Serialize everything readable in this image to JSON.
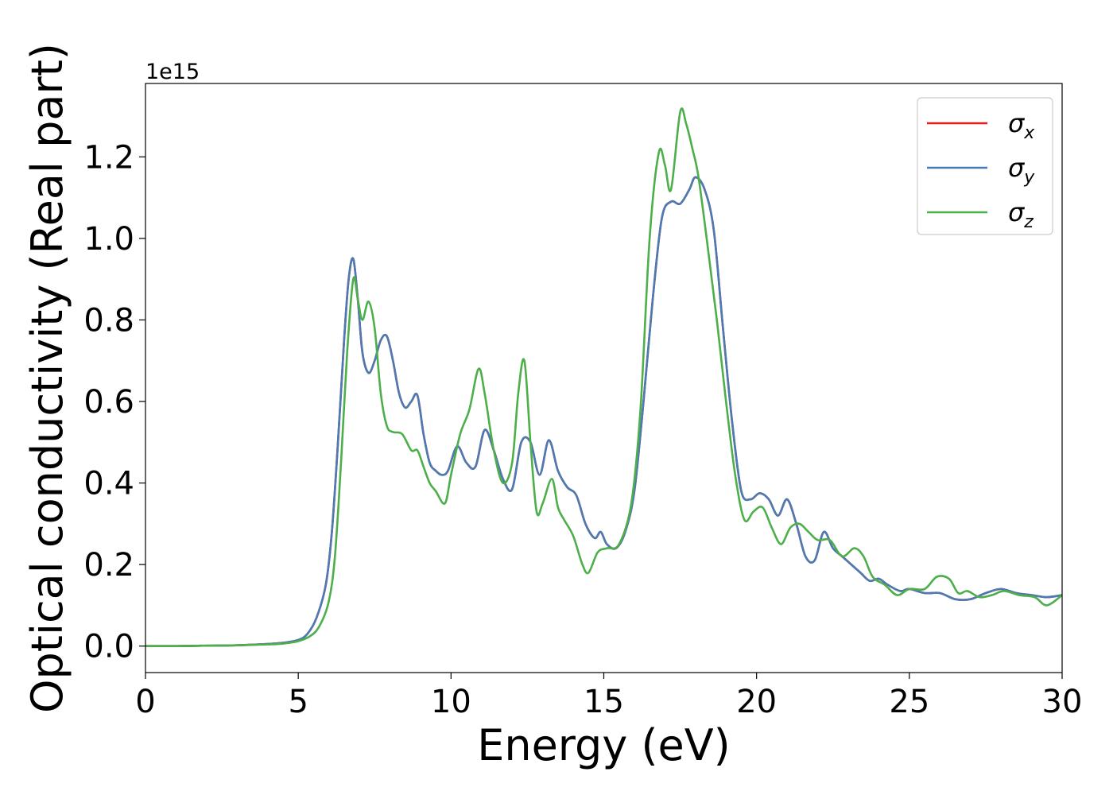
{
  "chart_data": {
    "type": "line",
    "xlabel": "Energy (eV)",
    "ylabel": "Optical conductivity (Real part)",
    "offset_text": "1e15",
    "xlim": [
      0,
      30
    ],
    "ylim": [
      -0.065,
      1.38
    ],
    "xticks": [
      0,
      5,
      10,
      15,
      20,
      25,
      30
    ],
    "xtick_labels": [
      "0",
      "5",
      "10",
      "15",
      "20",
      "25",
      "30"
    ],
    "yticks": [
      0.0,
      0.2,
      0.4,
      0.6,
      0.8,
      1.0,
      1.2
    ],
    "ytick_labels": [
      "0.0",
      "0.2",
      "0.4",
      "0.6",
      "0.8",
      "1.0",
      "1.2"
    ],
    "grid": false,
    "legend_position": "top-right",
    "y_scale_factor": 1000000000000000.0,
    "series": [
      {
        "name": "σx",
        "legend_symbol": "σ",
        "legend_subscript": "x",
        "color": "#e41a1c",
        "x": [
          0,
          1,
          2,
          3,
          4,
          4.5,
          5,
          5.3,
          5.6,
          5.9,
          6.1,
          6.3,
          6.5,
          6.65,
          6.8,
          6.95,
          7.1,
          7.3,
          7.5,
          7.7,
          7.9,
          8.1,
          8.3,
          8.5,
          8.7,
          8.9,
          9.1,
          9.3,
          9.5,
          9.7,
          9.9,
          10.2,
          10.5,
          10.8,
          11.1,
          11.4,
          11.7,
          12.0,
          12.3,
          12.6,
          12.9,
          13.2,
          13.5,
          13.8,
          14.1,
          14.4,
          14.7,
          14.9,
          15.1,
          15.4,
          15.7,
          16.0,
          16.3,
          16.6,
          16.9,
          17.2,
          17.5,
          17.8,
          18.0,
          18.3,
          18.6,
          18.9,
          19.2,
          19.5,
          19.8,
          20.1,
          20.4,
          20.7,
          21.0,
          21.3,
          21.6,
          21.9,
          22.2,
          22.5,
          22.8,
          23.1,
          23.4,
          23.7,
          24.0,
          24.3,
          24.7,
          25.0,
          25.5,
          26.0,
          26.5,
          27.0,
          27.5,
          28.0,
          28.5,
          29.0,
          29.5,
          30.0
        ],
        "y": [
          0,
          0,
          0.001,
          0.002,
          0.005,
          0.008,
          0.015,
          0.03,
          0.07,
          0.15,
          0.28,
          0.5,
          0.75,
          0.9,
          0.95,
          0.85,
          0.72,
          0.67,
          0.7,
          0.75,
          0.76,
          0.7,
          0.62,
          0.585,
          0.6,
          0.615,
          0.52,
          0.45,
          0.43,
          0.42,
          0.43,
          0.49,
          0.45,
          0.44,
          0.53,
          0.48,
          0.41,
          0.385,
          0.5,
          0.5,
          0.42,
          0.505,
          0.43,
          0.39,
          0.37,
          0.3,
          0.265,
          0.28,
          0.25,
          0.24,
          0.28,
          0.38,
          0.6,
          0.85,
          1.05,
          1.09,
          1.085,
          1.12,
          1.15,
          1.12,
          1.02,
          0.78,
          0.55,
          0.38,
          0.36,
          0.375,
          0.36,
          0.32,
          0.36,
          0.3,
          0.22,
          0.21,
          0.28,
          0.24,
          0.22,
          0.2,
          0.18,
          0.16,
          0.165,
          0.15,
          0.135,
          0.14,
          0.13,
          0.13,
          0.115,
          0.115,
          0.13,
          0.14,
          0.13,
          0.125,
          0.12,
          0.125
        ]
      },
      {
        "name": "σy",
        "legend_symbol": "σ",
        "legend_subscript": "y",
        "color": "#4a7bb4",
        "x": [
          0,
          1,
          2,
          3,
          4,
          4.5,
          5,
          5.3,
          5.6,
          5.9,
          6.1,
          6.3,
          6.5,
          6.65,
          6.8,
          6.95,
          7.1,
          7.3,
          7.5,
          7.7,
          7.9,
          8.1,
          8.3,
          8.5,
          8.7,
          8.9,
          9.1,
          9.3,
          9.5,
          9.7,
          9.9,
          10.2,
          10.5,
          10.8,
          11.1,
          11.4,
          11.7,
          12.0,
          12.3,
          12.6,
          12.9,
          13.2,
          13.5,
          13.8,
          14.1,
          14.4,
          14.7,
          14.9,
          15.1,
          15.4,
          15.7,
          16.0,
          16.3,
          16.6,
          16.9,
          17.2,
          17.5,
          17.8,
          18.0,
          18.3,
          18.6,
          18.9,
          19.2,
          19.5,
          19.8,
          20.1,
          20.4,
          20.7,
          21.0,
          21.3,
          21.6,
          21.9,
          22.2,
          22.5,
          22.8,
          23.1,
          23.4,
          23.7,
          24.0,
          24.3,
          24.7,
          25.0,
          25.5,
          26.0,
          26.5,
          27.0,
          27.5,
          28.0,
          28.5,
          29.0,
          29.5,
          30.0
        ],
        "y": [
          0,
          0,
          0.001,
          0.002,
          0.005,
          0.008,
          0.015,
          0.03,
          0.07,
          0.15,
          0.28,
          0.5,
          0.75,
          0.9,
          0.95,
          0.85,
          0.72,
          0.67,
          0.7,
          0.75,
          0.76,
          0.7,
          0.62,
          0.585,
          0.6,
          0.615,
          0.52,
          0.45,
          0.43,
          0.42,
          0.43,
          0.49,
          0.45,
          0.44,
          0.53,
          0.48,
          0.41,
          0.385,
          0.5,
          0.5,
          0.42,
          0.505,
          0.43,
          0.39,
          0.37,
          0.3,
          0.265,
          0.28,
          0.25,
          0.24,
          0.28,
          0.38,
          0.6,
          0.85,
          1.05,
          1.09,
          1.085,
          1.12,
          1.15,
          1.12,
          1.02,
          0.78,
          0.55,
          0.38,
          0.36,
          0.375,
          0.36,
          0.32,
          0.36,
          0.3,
          0.22,
          0.21,
          0.28,
          0.24,
          0.22,
          0.2,
          0.18,
          0.16,
          0.165,
          0.15,
          0.135,
          0.14,
          0.13,
          0.13,
          0.115,
          0.115,
          0.13,
          0.14,
          0.13,
          0.125,
          0.12,
          0.125
        ]
      },
      {
        "name": "σz",
        "legend_symbol": "σ",
        "legend_subscript": "z",
        "color": "#4daf4a",
        "x": [
          0,
          1,
          2,
          3,
          4,
          4.5,
          5,
          5.4,
          5.7,
          6.0,
          6.2,
          6.4,
          6.6,
          6.8,
          6.95,
          7.1,
          7.3,
          7.5,
          7.7,
          7.9,
          8.1,
          8.4,
          8.7,
          8.9,
          9.1,
          9.3,
          9.5,
          9.8,
          10.0,
          10.3,
          10.6,
          10.9,
          11.1,
          11.4,
          11.7,
          12.0,
          12.2,
          12.4,
          12.6,
          12.8,
          13.0,
          13.3,
          13.5,
          13.7,
          14.0,
          14.3,
          14.5,
          14.8,
          15.1,
          15.5,
          15.9,
          16.2,
          16.5,
          16.8,
          17.0,
          17.2,
          17.5,
          17.7,
          17.9,
          18.1,
          18.4,
          18.7,
          19.0,
          19.3,
          19.6,
          19.9,
          20.2,
          20.5,
          20.8,
          21.1,
          21.4,
          21.7,
          22.0,
          22.4,
          22.8,
          23.2,
          23.5,
          23.8,
          24.2,
          24.6,
          25.0,
          25.5,
          25.9,
          26.3,
          26.6,
          26.9,
          27.3,
          27.7,
          28.1,
          28.6,
          29.1,
          29.5,
          30.0
        ],
        "y": [
          0,
          0,
          0.001,
          0.002,
          0.004,
          0.006,
          0.012,
          0.025,
          0.05,
          0.11,
          0.22,
          0.45,
          0.72,
          0.9,
          0.85,
          0.8,
          0.845,
          0.78,
          0.62,
          0.54,
          0.525,
          0.52,
          0.48,
          0.48,
          0.44,
          0.4,
          0.38,
          0.35,
          0.42,
          0.52,
          0.58,
          0.68,
          0.62,
          0.48,
          0.4,
          0.45,
          0.62,
          0.7,
          0.5,
          0.33,
          0.35,
          0.41,
          0.34,
          0.31,
          0.27,
          0.2,
          0.18,
          0.23,
          0.24,
          0.25,
          0.35,
          0.58,
          1.0,
          1.21,
          1.18,
          1.12,
          1.31,
          1.28,
          1.22,
          1.15,
          0.98,
          0.8,
          0.6,
          0.42,
          0.31,
          0.33,
          0.34,
          0.29,
          0.25,
          0.29,
          0.3,
          0.28,
          0.26,
          0.26,
          0.22,
          0.24,
          0.22,
          0.17,
          0.15,
          0.125,
          0.14,
          0.14,
          0.17,
          0.165,
          0.13,
          0.135,
          0.12,
          0.125,
          0.135,
          0.125,
          0.12,
          0.1,
          0.125
        ]
      }
    ]
  }
}
